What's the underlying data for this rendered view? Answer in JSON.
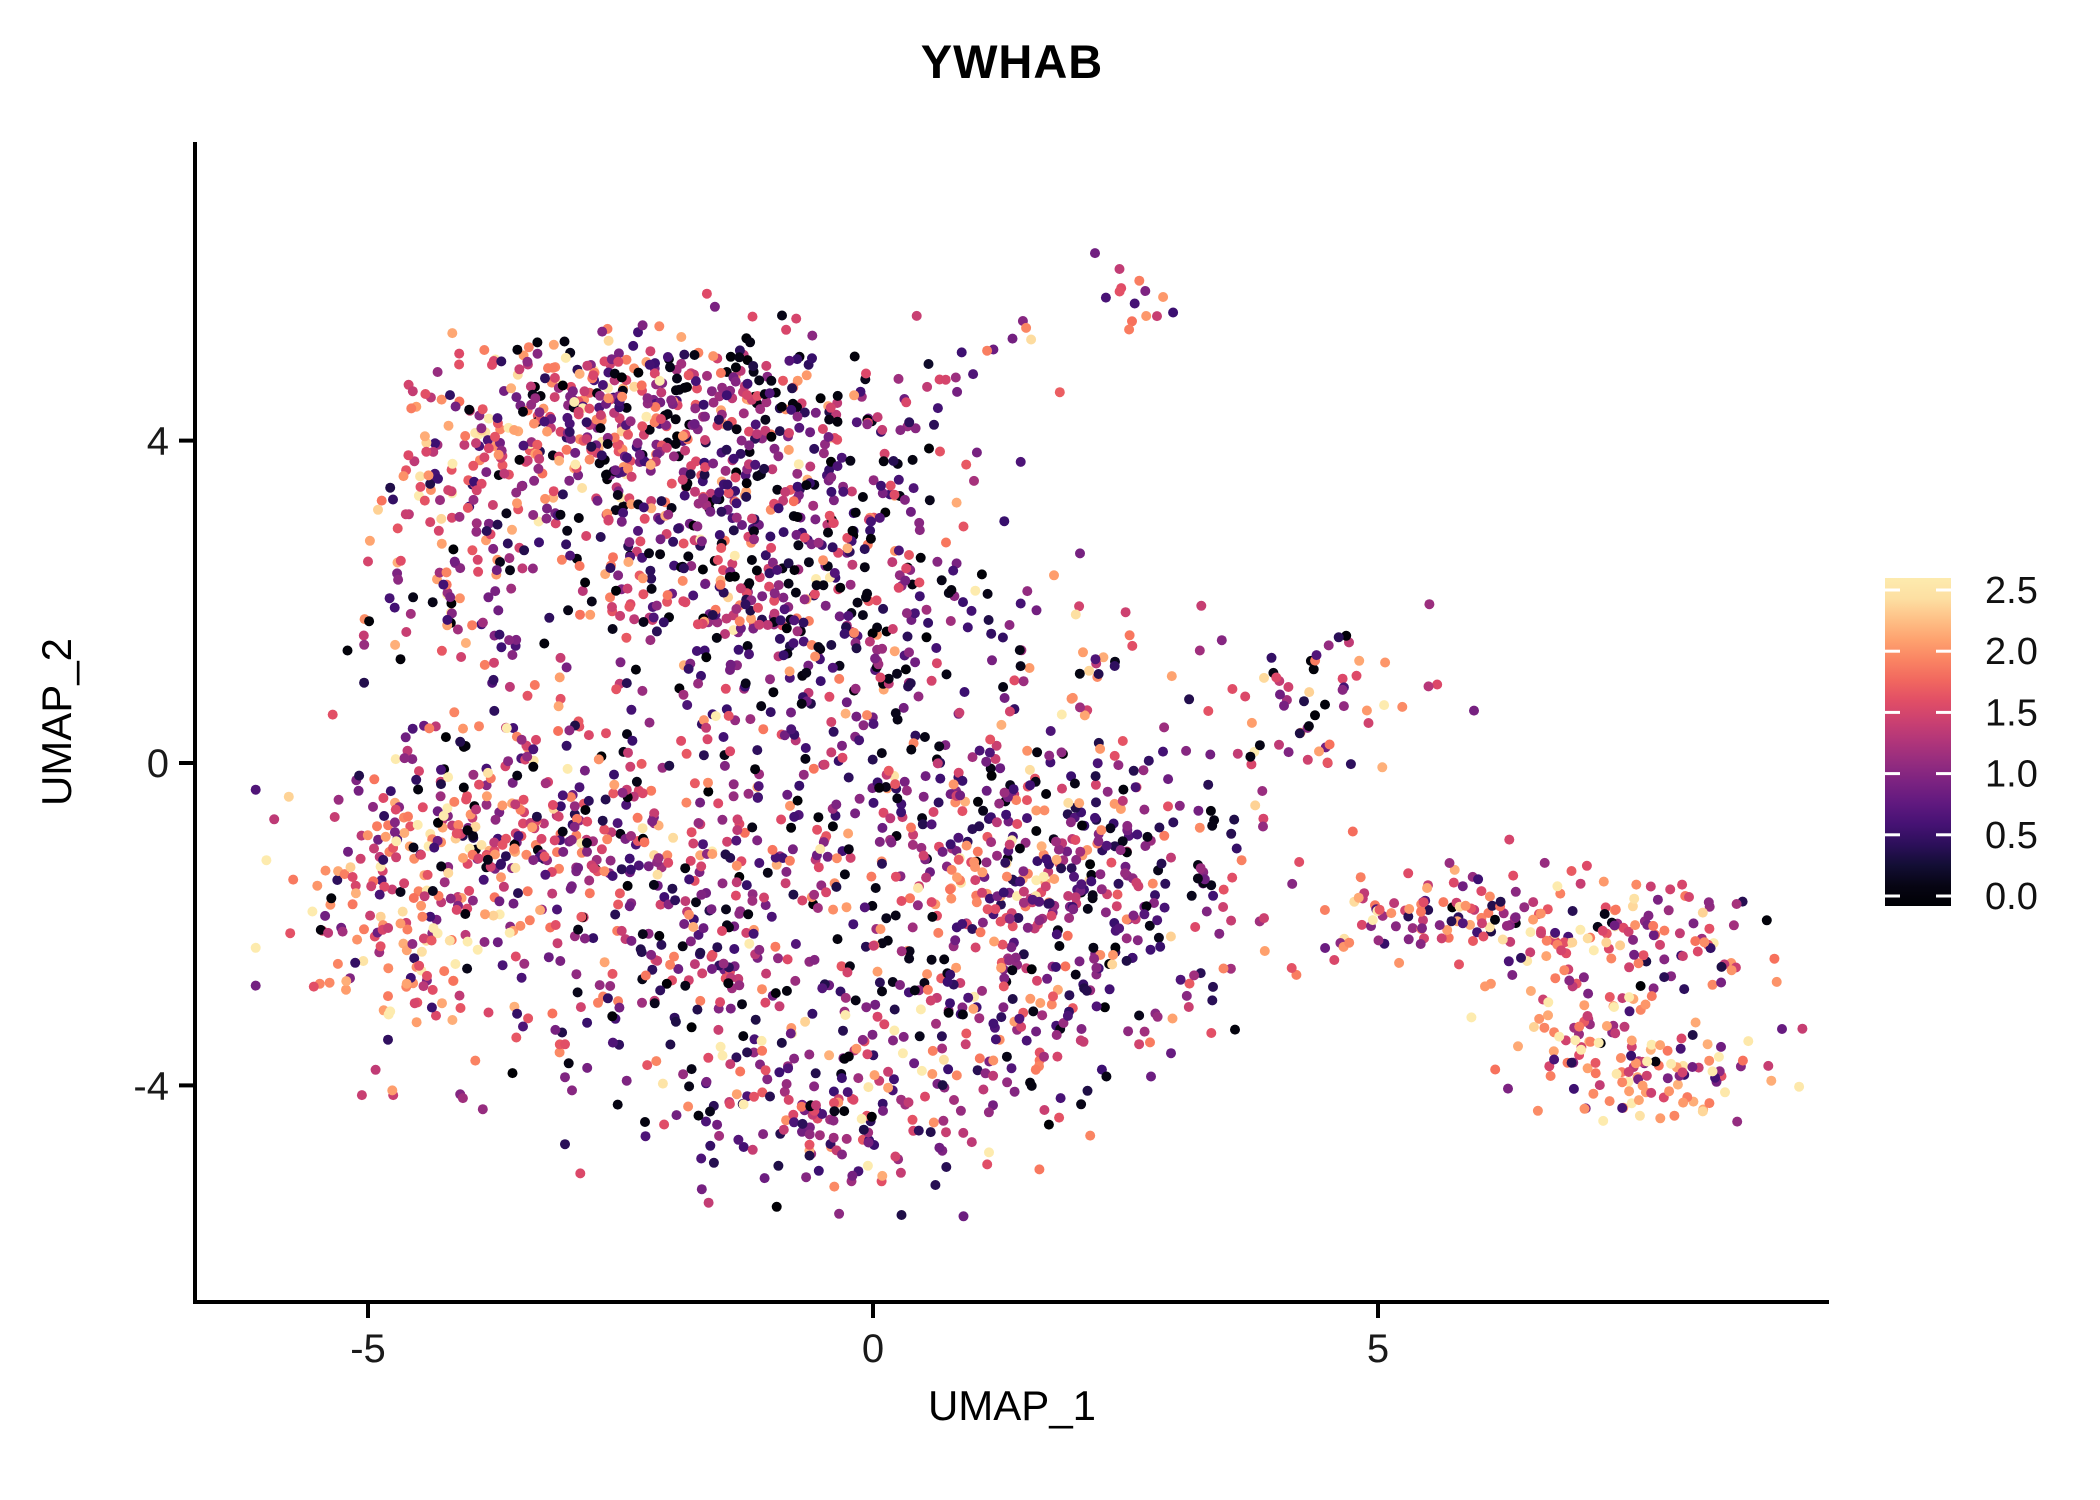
{
  "title": "YWHAB",
  "axes": {
    "xlabel": "UMAP_1",
    "ylabel": "UMAP_2",
    "x_ticks": [
      {
        "label": "-5",
        "value": -5
      },
      {
        "label": "0",
        "value": 0
      },
      {
        "label": "5",
        "value": 5
      }
    ],
    "y_ticks": [
      {
        "label": "4",
        "value": 4
      },
      {
        "label": "0",
        "value": 0
      },
      {
        "label": "-4",
        "value": -4
      }
    ]
  },
  "legend": {
    "tick_labels": [
      "2.5",
      "2.0",
      "1.5",
      "1.0",
      "0.5",
      "0.0"
    ],
    "tick_values": [
      2.5,
      2.0,
      1.5,
      1.0,
      0.5,
      0.0
    ]
  },
  "colors": {
    "background": "#ffffff",
    "axis_line": "#000000",
    "tick_text": "#1a1a1a",
    "title_text": "#000000"
  },
  "chart_data": {
    "type": "scatter",
    "title": "YWHAB",
    "xlabel": "UMAP_1",
    "ylabel": "UMAP_2",
    "xlim": [
      -6.7,
      9.5
    ],
    "ylim": [
      -6.7,
      7.7
    ],
    "x_tick_values": [
      -5,
      0,
      5
    ],
    "y_tick_values": [
      -4,
      0,
      4
    ],
    "grid": false,
    "legend_position": "right",
    "point_radius_px": 5,
    "colorbar": {
      "colormap": "magma",
      "value_range": [
        0.0,
        2.5
      ],
      "tick_values": [
        0.0,
        0.5,
        1.0,
        1.5,
        2.0,
        2.5
      ],
      "stops": [
        [
          0.0,
          "#000004"
        ],
        [
          0.1,
          "#140e36"
        ],
        [
          0.2,
          "#3b0f70"
        ],
        [
          0.3,
          "#641a80"
        ],
        [
          0.4,
          "#8c2981"
        ],
        [
          0.5,
          "#b73779"
        ],
        [
          0.6,
          "#de4968"
        ],
        [
          0.7,
          "#f7705c"
        ],
        [
          0.8,
          "#fe9f6d"
        ],
        [
          0.9,
          "#fecf92"
        ],
        [
          1.0,
          "#fcfdbf"
        ]
      ]
    },
    "expression_levels": [
      0,
      0.5,
      1,
      1.5,
      2,
      2.5
    ],
    "generator_seed": 20177,
    "clusters": [
      {
        "name": "upper-left-edge",
        "kind": "gauss",
        "c": [
          -4.05,
          3.35
        ],
        "s": [
          0.42,
          0.62
        ],
        "n": 80,
        "w": [
          0.05,
          0.08,
          0.16,
          0.3,
          0.28,
          0.13
        ]
      },
      {
        "name": "upper-top-left",
        "kind": "gauss",
        "c": [
          -3.3,
          4.35
        ],
        "s": [
          0.55,
          0.5
        ],
        "n": 120,
        "w": [
          0.06,
          0.1,
          0.18,
          0.28,
          0.26,
          0.12
        ]
      },
      {
        "name": "upper-top-mid",
        "kind": "gauss",
        "c": [
          -2.25,
          4.55
        ],
        "s": [
          0.72,
          0.48
        ],
        "n": 170,
        "w": [
          0.12,
          0.16,
          0.22,
          0.28,
          0.18,
          0.04
        ]
      },
      {
        "name": "upper-mid-right",
        "kind": "gauss",
        "c": [
          -1.2,
          3.95
        ],
        "s": [
          0.78,
          0.72
        ],
        "n": 190,
        "w": [
          0.2,
          0.24,
          0.26,
          0.2,
          0.09,
          0.01
        ]
      },
      {
        "name": "upper-mid-left",
        "kind": "gauss",
        "c": [
          -2.65,
          2.95
        ],
        "s": [
          0.92,
          0.78
        ],
        "n": 200,
        "w": [
          0.13,
          0.18,
          0.26,
          0.26,
          0.14,
          0.03
        ]
      },
      {
        "name": "upper-band",
        "kind": "gauss",
        "c": [
          -1.55,
          2.15
        ],
        "s": [
          0.8,
          0.55
        ],
        "n": 120,
        "w": [
          0.15,
          0.2,
          0.25,
          0.25,
          0.12,
          0.03
        ]
      },
      {
        "name": "upper-right-core",
        "kind": "gauss",
        "c": [
          -0.15,
          2.75
        ],
        "s": [
          0.62,
          0.95
        ],
        "n": 150,
        "w": [
          0.26,
          0.3,
          0.24,
          0.14,
          0.05,
          0.01
        ]
      },
      {
        "name": "upper-right-lower",
        "kind": "gauss",
        "c": [
          -0.55,
          1.35
        ],
        "s": [
          0.75,
          0.75
        ],
        "n": 130,
        "w": [
          0.22,
          0.26,
          0.24,
          0.18,
          0.08,
          0.02
        ]
      },
      {
        "name": "left-gap-sparse",
        "kind": "gauss",
        "c": [
          -4.1,
          1.7
        ],
        "s": [
          0.5,
          0.55
        ],
        "n": 45,
        "w": [
          0.15,
          0.25,
          0.28,
          0.2,
          0.1,
          0.02
        ]
      },
      {
        "name": "trail-to-top",
        "kind": "line",
        "p1": [
          -0.35,
          4.05
        ],
        "p2": [
          1.45,
          5.25
        ],
        "jitter": 0.16,
        "n": 20,
        "w": [
          0.05,
          0.2,
          0.25,
          0.3,
          0.18,
          0.02
        ]
      },
      {
        "name": "top-satellite",
        "kind": "gauss",
        "c": [
          2.65,
          5.9
        ],
        "s": [
          0.26,
          0.3
        ],
        "n": 14,
        "w": [
          0.02,
          0.25,
          0.25,
          0.28,
          0.18,
          0.02
        ]
      },
      {
        "name": "center-gap-sparse",
        "kind": "gauss",
        "c": [
          0.95,
          1.35
        ],
        "s": [
          0.85,
          0.7
        ],
        "n": 40,
        "w": [
          0.22,
          0.24,
          0.24,
          0.18,
          0.1,
          0.02
        ]
      },
      {
        "name": "mid-small-cluster",
        "kind": "gauss",
        "c": [
          2.2,
          1.2
        ],
        "s": [
          0.22,
          0.26
        ],
        "n": 16,
        "w": [
          0.12,
          0.1,
          0.15,
          0.25,
          0.3,
          0.08
        ]
      },
      {
        "name": "mid-right-cluster",
        "kind": "gauss",
        "c": [
          4.35,
          0.8
        ],
        "s": [
          0.55,
          0.45
        ],
        "n": 60,
        "w": [
          0.1,
          0.2,
          0.22,
          0.25,
          0.18,
          0.05
        ]
      },
      {
        "name": "lower-left-mid",
        "kind": "gauss",
        "c": [
          -3.25,
          -0.55
        ],
        "s": [
          0.8,
          0.62
        ],
        "n": 220,
        "w": [
          0.08,
          0.14,
          0.22,
          0.3,
          0.2,
          0.06
        ]
      },
      {
        "name": "lower-left-wing",
        "kind": "gauss",
        "c": [
          -4.5,
          -1.65
        ],
        "s": [
          0.62,
          0.95
        ],
        "n": 240,
        "w": [
          0.04,
          0.08,
          0.16,
          0.3,
          0.28,
          0.14
        ]
      },
      {
        "name": "lower-center",
        "kind": "gauss",
        "c": [
          -1.85,
          -2.2
        ],
        "s": [
          1.0,
          1.1
        ],
        "n": 290,
        "w": [
          0.14,
          0.2,
          0.25,
          0.23,
          0.14,
          0.04
        ]
      },
      {
        "name": "lower-top-band",
        "kind": "gauss",
        "c": [
          0.35,
          -0.55
        ],
        "s": [
          1.15,
          0.68
        ],
        "n": 200,
        "w": [
          0.13,
          0.2,
          0.24,
          0.24,
          0.15,
          0.04
        ]
      },
      {
        "name": "lower-mid-south",
        "kind": "gauss",
        "c": [
          0.85,
          -2.95
        ],
        "s": [
          0.9,
          0.72
        ],
        "n": 170,
        "w": [
          0.12,
          0.22,
          0.26,
          0.24,
          0.13,
          0.03
        ]
      },
      {
        "name": "lower-bottom-tip",
        "kind": "gauss",
        "c": [
          -0.45,
          -4.25
        ],
        "s": [
          1.0,
          0.55
        ],
        "n": 180,
        "w": [
          0.1,
          0.18,
          0.26,
          0.26,
          0.15,
          0.05
        ]
      },
      {
        "name": "bright-pocket",
        "kind": "gauss",
        "c": [
          1.3,
          -1.5
        ],
        "s": [
          0.42,
          0.4
        ],
        "n": 70,
        "w": [
          0.03,
          0.06,
          0.12,
          0.25,
          0.38,
          0.16
        ]
      },
      {
        "name": "lower-right-lobe",
        "kind": "gauss",
        "c": [
          2.4,
          -1.55
        ],
        "s": [
          0.7,
          0.9
        ],
        "n": 240,
        "w": [
          0.16,
          0.34,
          0.28,
          0.14,
          0.07,
          0.01
        ]
      },
      {
        "name": "bridge-trail",
        "kind": "line",
        "p1": [
          3.7,
          -2.55
        ],
        "p2": [
          5.45,
          -1.95
        ],
        "jitter": 0.18,
        "n": 13,
        "w": [
          0.05,
          0.15,
          0.25,
          0.3,
          0.2,
          0.05
        ]
      },
      {
        "name": "right-left-tip",
        "kind": "gauss",
        "c": [
          5.62,
          -1.85
        ],
        "s": [
          0.28,
          0.24
        ],
        "n": 22,
        "w": [
          0.05,
          0.18,
          0.2,
          0.25,
          0.25,
          0.07
        ]
      },
      {
        "name": "right-top-band",
        "kind": "gauss",
        "c": [
          6.4,
          -2.0
        ],
        "s": [
          1.0,
          0.3
        ],
        "n": 125,
        "rot": -5,
        "w": [
          0.03,
          0.1,
          0.17,
          0.27,
          0.3,
          0.13
        ]
      },
      {
        "name": "right-dark-pocket",
        "kind": "gauss",
        "c": [
          8.2,
          -2.05
        ],
        "s": [
          0.3,
          0.28
        ],
        "n": 26,
        "w": [
          0.06,
          0.28,
          0.3,
          0.22,
          0.12,
          0.02
        ]
      },
      {
        "name": "right-descending",
        "kind": "gauss",
        "c": [
          7.15,
          -3.1
        ],
        "s": [
          0.45,
          0.6
        ],
        "n": 100,
        "rot": 20,
        "w": [
          0.02,
          0.07,
          0.14,
          0.26,
          0.34,
          0.17
        ]
      },
      {
        "name": "right-bottom-hook",
        "kind": "gauss",
        "c": [
          7.85,
          -3.95
        ],
        "s": [
          0.52,
          0.3
        ],
        "n": 75,
        "w": [
          0.02,
          0.06,
          0.12,
          0.24,
          0.36,
          0.2
        ]
      }
    ],
    "extra_points": [
      [
        -5.35,
        0.6,
        1.6
      ],
      [
        -5.0,
        2.5,
        1.5
      ],
      [
        2.05,
        2.6,
        0.9
      ],
      [
        3.25,
        1.95,
        1.4
      ],
      [
        2.6,
        -0.3,
        0.6
      ],
      [
        3.1,
        0.15,
        1.0
      ],
      [
        4.75,
        -0.85,
        1.8
      ],
      [
        5.95,
        0.65,
        0.9
      ],
      [
        5.5,
        0.95,
        1.3
      ],
      [
        3.35,
        -3.35,
        1.6
      ],
      [
        2.95,
        -3.6,
        0.8
      ],
      [
        6.3,
        -0.95,
        1.5
      ],
      [
        4.15,
        -1.5,
        1.0
      ],
      [
        9.0,
        -3.3,
        0.8
      ],
      [
        8.55,
        -1.75,
        1.2
      ],
      [
        1.85,
        4.6,
        1.7
      ],
      [
        0.55,
        4.95,
        0.2
      ],
      [
        -0.1,
        3.3,
        0.05
      ],
      [
        1.0,
        3.5,
        1.2
      ],
      [
        1.3,
        3.0,
        0.5
      ]
    ]
  }
}
